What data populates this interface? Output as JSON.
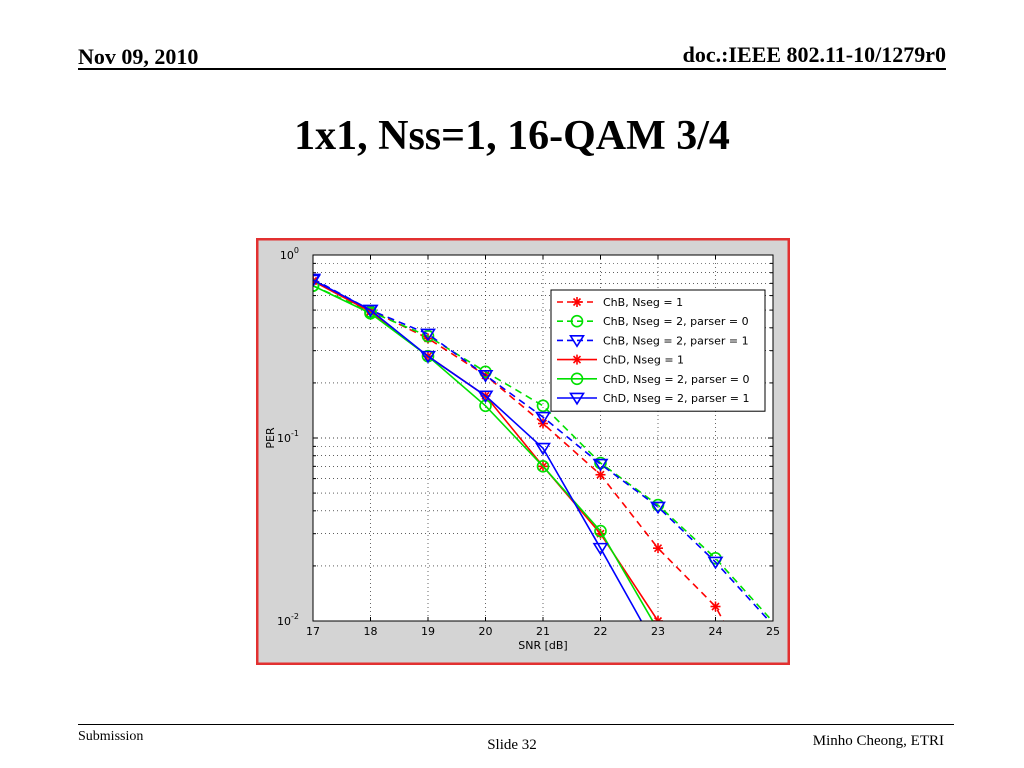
{
  "header": {
    "date": "Nov 09, 2010",
    "doc_id": "doc.:IEEE 802.11-10/1279r0"
  },
  "slide_title": "1x1, Nss=1, 16-QAM 3/4",
  "footer": {
    "left": "Submission",
    "center": "Slide 32",
    "right": "Minho Cheong, ETRI"
  },
  "colors": {
    "frame": "#e23030",
    "panel": "#d4d4d4",
    "red": "#ff0000",
    "green": "#00e000",
    "blue": "#0000ff"
  },
  "chart_data": {
    "type": "line",
    "title": "",
    "xlabel": "SNR [dB]",
    "ylabel": "PER",
    "xlim": [
      17,
      25
    ],
    "ylim": [
      0.01,
      1
    ],
    "yscale": "log",
    "grid": true,
    "legend_position": "top-right",
    "x_ticks": [
      "17",
      "18",
      "19",
      "20",
      "21",
      "22",
      "23",
      "24",
      "25"
    ],
    "y_tick_labels": [
      {
        "value": 1,
        "base": "10",
        "exp": "0"
      },
      {
        "value": 0.1,
        "base": "10",
        "exp": "-1"
      },
      {
        "value": 0.01,
        "base": "10",
        "exp": "-2"
      }
    ],
    "series": [
      {
        "name": "ChB, Nseg = 1",
        "color": "#ff0000",
        "dash": true,
        "marker": "star",
        "points": [
          [
            17,
            0.72
          ],
          [
            18,
            0.5
          ],
          [
            19,
            0.35
          ],
          [
            20,
            0.22
          ],
          [
            21,
            0.12
          ],
          [
            22,
            0.063
          ],
          [
            23,
            0.025
          ],
          [
            24,
            0.012
          ],
          [
            24.2,
            0.0092
          ]
        ]
      },
      {
        "name": "ChB, Nseg = 2, parser = 0",
        "color": "#00e000",
        "dash": true,
        "marker": "circle",
        "points": [
          [
            17,
            0.68
          ],
          [
            18,
            0.49
          ],
          [
            19,
            0.36
          ],
          [
            20,
            0.23
          ],
          [
            21,
            0.15
          ],
          [
            22,
            0.073
          ],
          [
            23,
            0.043
          ],
          [
            24,
            0.022
          ],
          [
            25,
            0.0099
          ]
        ]
      },
      {
        "name": "ChB, Nseg = 2, parser = 1",
        "color": "#0000ff",
        "dash": true,
        "marker": "triangle",
        "points": [
          [
            17,
            0.74
          ],
          [
            18,
            0.5
          ],
          [
            19,
            0.37
          ],
          [
            20,
            0.22
          ],
          [
            21,
            0.13
          ],
          [
            22,
            0.072
          ],
          [
            23,
            0.042
          ],
          [
            24,
            0.021
          ],
          [
            25,
            0.0095
          ]
        ]
      },
      {
        "name": "ChD, Nseg = 1",
        "color": "#ff0000",
        "dash": false,
        "marker": "star",
        "points": [
          [
            17,
            0.72
          ],
          [
            18,
            0.49
          ],
          [
            19,
            0.28
          ],
          [
            20,
            0.17
          ],
          [
            21,
            0.07
          ],
          [
            22,
            0.03
          ],
          [
            23,
            0.01
          ]
        ]
      },
      {
        "name": "ChD, Nseg = 2, parser = 0",
        "color": "#00e000",
        "dash": false,
        "marker": "circle",
        "points": [
          [
            17,
            0.68
          ],
          [
            18,
            0.48
          ],
          [
            19,
            0.28
          ],
          [
            20,
            0.15
          ],
          [
            21,
            0.07
          ],
          [
            22,
            0.031
          ],
          [
            22.95,
            0.0095
          ]
        ]
      },
      {
        "name": "ChD, Nseg = 2, parser = 1",
        "color": "#0000ff",
        "dash": false,
        "marker": "triangle",
        "points": [
          [
            17,
            0.73
          ],
          [
            18,
            0.5
          ],
          [
            19,
            0.28
          ],
          [
            20,
            0.17
          ],
          [
            21,
            0.088
          ],
          [
            22,
            0.025
          ],
          [
            22.75,
            0.0095
          ]
        ]
      }
    ]
  }
}
